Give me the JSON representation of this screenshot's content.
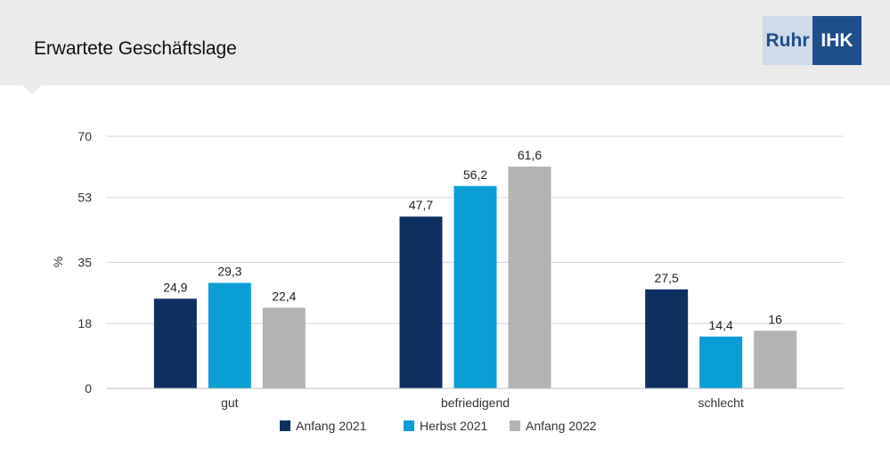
{
  "header": {
    "title": "Erwartete Geschäftslage",
    "logo": {
      "left": "Ruhr",
      "right": "IHK"
    }
  },
  "chart_data": {
    "type": "bar",
    "title": "Erwartete Geschäftslage",
    "xlabel": "",
    "ylabel": "%",
    "categories": [
      "gut",
      "befriedigend",
      "schlecht"
    ],
    "series": [
      {
        "name": "Anfang 2021",
        "color": "#0d3061",
        "values": [
          24.9,
          47.7,
          27.5
        ],
        "labels": [
          "24,9",
          "47,7",
          "27,5"
        ]
      },
      {
        "name": "Herbst 2021",
        "color": "#0b9ed6",
        "values": [
          29.3,
          56.2,
          14.4
        ],
        "labels": [
          "29,3",
          "56,2",
          "14,4"
        ]
      },
      {
        "name": "Anfang 2022",
        "color": "#b3b3b3",
        "values": [
          22.4,
          61.6,
          16
        ],
        "labels": [
          "22,4",
          "61,6",
          "16"
        ]
      }
    ],
    "yticks": [
      0,
      18,
      35,
      53,
      70
    ],
    "ylim": [
      0,
      70
    ],
    "grid": true,
    "legend_position": "bottom"
  }
}
